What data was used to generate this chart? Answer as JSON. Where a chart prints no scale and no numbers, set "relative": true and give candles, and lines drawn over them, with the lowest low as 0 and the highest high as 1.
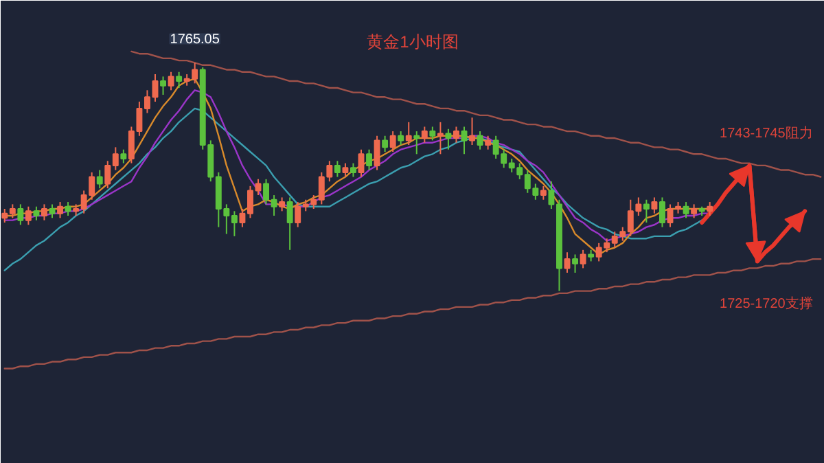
{
  "chart_data": {
    "type": "candlestick",
    "title": "黄金1小时图",
    "relative": true,
    "categories": [
      null,
      null,
      null,
      null,
      null,
      null,
      null,
      null,
      null,
      null,
      null,
      null,
      null,
      null,
      null,
      null,
      null,
      null,
      null,
      null,
      null,
      null,
      null,
      null,
      null,
      null,
      null,
      null,
      null,
      null,
      null,
      null,
      null,
      null,
      null,
      null,
      null,
      null,
      null,
      null,
      null,
      null,
      null,
      null,
      null,
      null,
      null,
      null,
      null,
      null,
      null,
      null,
      null,
      null,
      null,
      null,
      null,
      null,
      null,
      null,
      null,
      null,
      null,
      null,
      null,
      null,
      null,
      null,
      null,
      null,
      null,
      null,
      null,
      null,
      null,
      null,
      null,
      null,
      null,
      null,
      null,
      null,
      null,
      null,
      null,
      null,
      null,
      null,
      null,
      null,
      null,
      null,
      null,
      null,
      null,
      null,
      null,
      null,
      null,
      null,
      null,
      null,
      null,
      null
    ],
    "ohlc": [
      [
        0.32,
        0.36,
        0.3,
        0.34
      ],
      [
        0.34,
        0.38,
        0.32,
        0.36
      ],
      [
        0.36,
        0.38,
        0.29,
        0.31
      ],
      [
        0.31,
        0.37,
        0.29,
        0.35
      ],
      [
        0.35,
        0.37,
        0.31,
        0.33
      ],
      [
        0.33,
        0.38,
        0.31,
        0.36
      ],
      [
        0.36,
        0.38,
        0.32,
        0.34
      ],
      [
        0.34,
        0.39,
        0.32,
        0.37
      ],
      [
        0.37,
        0.39,
        0.33,
        0.35
      ],
      [
        0.35,
        0.38,
        0.33,
        0.36
      ],
      [
        0.36,
        0.44,
        0.34,
        0.42
      ],
      [
        0.42,
        0.52,
        0.4,
        0.5
      ],
      [
        0.5,
        0.53,
        0.45,
        0.47
      ],
      [
        0.47,
        0.57,
        0.45,
        0.55
      ],
      [
        0.55,
        0.63,
        0.53,
        0.6
      ],
      [
        0.6,
        0.62,
        0.56,
        0.58
      ],
      [
        0.58,
        0.72,
        0.56,
        0.7
      ],
      [
        0.7,
        0.83,
        0.68,
        0.8
      ],
      [
        0.8,
        0.88,
        0.78,
        0.85
      ],
      [
        0.85,
        0.95,
        0.83,
        0.92
      ],
      [
        0.92,
        0.94,
        0.86,
        0.9
      ],
      [
        0.9,
        0.96,
        0.88,
        0.94
      ],
      [
        0.94,
        0.96,
        0.89,
        0.92
      ],
      [
        0.92,
        0.95,
        0.9,
        0.93
      ],
      [
        0.93,
        1.0,
        0.91,
        0.97
      ],
      [
        0.97,
        0.98,
        0.62,
        0.64
      ],
      [
        0.64,
        0.66,
        0.48,
        0.5
      ],
      [
        0.5,
        0.52,
        0.28,
        0.36
      ],
      [
        0.36,
        0.38,
        0.25,
        0.33
      ],
      [
        0.33,
        0.35,
        0.24,
        0.3
      ],
      [
        0.3,
        0.36,
        0.28,
        0.34
      ],
      [
        0.34,
        0.46,
        0.32,
        0.44
      ],
      [
        0.44,
        0.49,
        0.42,
        0.47
      ],
      [
        0.47,
        0.49,
        0.38,
        0.4
      ],
      [
        0.4,
        0.42,
        0.33,
        0.37
      ],
      [
        0.37,
        0.41,
        0.35,
        0.39
      ],
      [
        0.39,
        0.41,
        0.18,
        0.3
      ],
      [
        0.3,
        0.39,
        0.28,
        0.37
      ],
      [
        0.37,
        0.4,
        0.35,
        0.38
      ],
      [
        0.38,
        0.42,
        0.36,
        0.4
      ],
      [
        0.4,
        0.52,
        0.38,
        0.5
      ],
      [
        0.5,
        0.57,
        0.48,
        0.55
      ],
      [
        0.55,
        0.57,
        0.5,
        0.52
      ],
      [
        0.52,
        0.56,
        0.5,
        0.54
      ],
      [
        0.54,
        0.56,
        0.5,
        0.52
      ],
      [
        0.52,
        0.62,
        0.5,
        0.6
      ],
      [
        0.6,
        0.62,
        0.53,
        0.55
      ],
      [
        0.55,
        0.68,
        0.53,
        0.66
      ],
      [
        0.66,
        0.68,
        0.61,
        0.63
      ],
      [
        0.63,
        0.7,
        0.61,
        0.68
      ],
      [
        0.68,
        0.7,
        0.64,
        0.66
      ],
      [
        0.66,
        0.74,
        0.64,
        0.68
      ],
      [
        0.68,
        0.7,
        0.6,
        0.67
      ],
      [
        0.67,
        0.72,
        0.65,
        0.7
      ],
      [
        0.7,
        0.72,
        0.66,
        0.68
      ],
      [
        0.68,
        0.74,
        0.6,
        0.69
      ],
      [
        0.69,
        0.71,
        0.62,
        0.67
      ],
      [
        0.67,
        0.72,
        0.65,
        0.7
      ],
      [
        0.7,
        0.72,
        0.6,
        0.66
      ],
      [
        0.66,
        0.76,
        0.64,
        0.68
      ],
      [
        0.68,
        0.7,
        0.62,
        0.64
      ],
      [
        0.64,
        0.68,
        0.62,
        0.66
      ],
      [
        0.66,
        0.68,
        0.58,
        0.6
      ],
      [
        0.6,
        0.62,
        0.54,
        0.56
      ],
      [
        0.56,
        0.58,
        0.52,
        0.54
      ],
      [
        0.54,
        0.56,
        0.49,
        0.51
      ],
      [
        0.51,
        0.53,
        0.43,
        0.45
      ],
      [
        0.45,
        0.47,
        0.4,
        0.42
      ],
      [
        0.42,
        0.46,
        0.4,
        0.44
      ],
      [
        0.44,
        0.48,
        0.36,
        0.38
      ],
      [
        0.38,
        0.4,
        0.0,
        0.1
      ],
      [
        0.1,
        0.17,
        0.08,
        0.14
      ],
      [
        0.14,
        0.16,
        0.08,
        0.12
      ],
      [
        0.12,
        0.18,
        0.1,
        0.16
      ],
      [
        0.16,
        0.18,
        0.13,
        0.15
      ],
      [
        0.15,
        0.21,
        0.13,
        0.19
      ],
      [
        0.19,
        0.23,
        0.17,
        0.21
      ],
      [
        0.21,
        0.26,
        0.19,
        0.24
      ],
      [
        0.24,
        0.28,
        0.22,
        0.26
      ],
      [
        0.26,
        0.4,
        0.24,
        0.35
      ],
      [
        0.35,
        0.41,
        0.33,
        0.38
      ],
      [
        0.38,
        0.4,
        0.3,
        0.36
      ],
      [
        0.36,
        0.41,
        0.34,
        0.39
      ],
      [
        0.39,
        0.41,
        0.28,
        0.3
      ],
      [
        0.3,
        0.38,
        0.28,
        0.36
      ],
      [
        0.36,
        0.39,
        0.34,
        0.37
      ],
      [
        0.37,
        0.39,
        0.32,
        0.34
      ],
      [
        0.34,
        0.38,
        0.32,
        0.36
      ],
      [
        0.36,
        0.37,
        0.33,
        0.35
      ],
      [
        0.35,
        0.39,
        0.33,
        0.37
      ],
      null,
      null,
      null,
      null,
      null,
      null,
      null,
      null,
      null,
      null,
      null,
      null,
      null,
      null
    ],
    "colors": [
      "#ef6a4f",
      "#ef6a4f",
      "#5cc23d",
      "#ef6a4f",
      "#5cc23d",
      "#ef6a4f",
      "#5cc23d",
      "#ef6a4f",
      "#5cc23d",
      "#ef6a4f",
      "#ef6a4f",
      "#ef6a4f",
      "#5cc23d",
      "#ef6a4f",
      "#ef6a4f",
      "#5cc23d",
      "#ef6a4f",
      "#ef6a4f",
      "#ef6a4f",
      "#ef6a4f",
      "#5cc23d",
      "#ef6a4f",
      "#5cc23d",
      "#ef6a4f",
      "#ef6a4f",
      "#5cc23d",
      "#5cc23d",
      "#5cc23d",
      "#5cc23d",
      "#5cc23d",
      "#ef6a4f",
      "#ef6a4f",
      "#ef6a4f",
      "#5cc23d",
      "#5cc23d",
      "#ef6a4f",
      "#5cc23d",
      "#ef6a4f",
      "#ef6a4f",
      "#ef6a4f",
      "#ef6a4f",
      "#ef6a4f",
      "#5cc23d",
      "#ef6a4f",
      "#5cc23d",
      "#ef6a4f",
      "#5cc23d",
      "#ef6a4f",
      "#5cc23d",
      "#ef6a4f",
      "#5cc23d",
      "#ef6a4f",
      "#5cc23d",
      "#ef6a4f",
      "#5cc23d",
      "#ef6a4f",
      "#5cc23d",
      "#ef6a4f",
      "#5cc23d",
      "#ef6a4f",
      "#5cc23d",
      "#ef6a4f",
      "#5cc23d",
      "#5cc23d",
      "#5cc23d",
      "#5cc23d",
      "#5cc23d",
      "#5cc23d",
      "#ef6a4f",
      "#5cc23d",
      "#5cc23d",
      "#ef6a4f",
      "#5cc23d",
      "#ef6a4f",
      "#5cc23d",
      "#ef6a4f",
      "#ef6a4f",
      "#ef6a4f",
      "#ef6a4f",
      "#ef6a4f",
      "#ef6a4f",
      "#5cc23d",
      "#ef6a4f",
      "#5cc23d",
      "#ef6a4f",
      "#ef6a4f",
      "#5cc23d",
      "#ef6a4f",
      "#5cc23d",
      "#ef6a4f",
      null,
      null,
      null,
      null,
      null,
      null,
      null,
      null,
      null,
      null,
      null,
      null,
      null,
      null
    ],
    "series": [
      {
        "type": "line",
        "color": "#3b9fb0",
        "values": [
          0.09,
          0.12,
          0.14,
          0.17,
          0.2,
          0.22,
          0.25,
          0.28,
          0.3,
          0.33,
          0.35,
          0.38,
          0.41,
          0.44,
          0.47,
          0.5,
          0.53,
          0.56,
          0.6,
          0.63,
          0.67,
          0.7,
          0.74,
          0.77,
          0.8,
          0.79,
          0.76,
          0.73,
          0.7,
          0.67,
          0.64,
          0.61,
          0.58,
          0.55,
          0.5,
          0.46,
          0.42,
          0.38,
          0.37,
          0.37,
          0.37,
          0.37,
          0.39,
          0.41,
          0.43,
          0.45,
          0.47,
          0.48,
          0.5,
          0.52,
          0.54,
          0.55,
          0.57,
          0.59,
          0.6,
          0.62,
          0.63,
          0.65,
          0.66,
          0.67,
          0.67,
          0.66,
          0.64,
          0.63,
          0.62,
          0.61,
          0.57,
          0.53,
          0.49,
          0.45,
          0.42,
          0.38,
          0.35,
          0.32,
          0.3,
          0.28,
          0.27,
          0.25,
          0.24,
          0.23,
          0.23,
          0.23,
          0.24,
          0.24,
          0.24,
          0.26,
          0.27,
          0.29,
          0.31,
          null,
          null,
          null,
          null,
          null,
          null,
          null,
          null,
          null,
          null,
          null,
          null,
          null,
          null,
          null
        ]
      },
      {
        "type": "line",
        "color": "#9b35c9",
        "values": [
          0.31,
          0.31,
          0.32,
          0.32,
          0.33,
          0.33,
          0.34,
          0.34,
          0.35,
          0.35,
          0.36,
          0.38,
          0.4,
          0.42,
          0.44,
          0.46,
          0.48,
          0.54,
          0.59,
          0.65,
          0.7,
          0.75,
          0.79,
          0.84,
          0.88,
          0.87,
          0.85,
          0.78,
          0.7,
          0.63,
          0.55,
          0.49,
          0.44,
          0.38,
          0.38,
          0.38,
          0.37,
          0.37,
          0.37,
          0.39,
          0.41,
          0.42,
          0.44,
          0.46,
          0.48,
          0.5,
          0.53,
          0.55,
          0.57,
          0.6,
          0.62,
          0.63,
          0.64,
          0.65,
          0.65,
          0.66,
          0.67,
          0.67,
          0.67,
          0.68,
          0.68,
          0.67,
          0.65,
          0.64,
          0.62,
          0.6,
          0.57,
          0.55,
          0.52,
          0.47,
          0.42,
          0.37,
          0.32,
          0.3,
          0.27,
          0.25,
          0.22,
          0.23,
          0.24,
          0.25,
          0.26,
          0.28,
          0.29,
          0.31,
          0.32,
          0.32,
          0.33,
          0.33,
          0.34,
          0.34,
          null,
          null,
          null,
          null,
          null,
          null,
          null,
          null,
          null,
          null,
          null,
          null,
          null,
          null
        ]
      },
      {
        "type": "line",
        "color": "#d98a2b",
        "values": [
          0.33,
          0.33,
          0.34,
          0.34,
          0.35,
          0.35,
          0.36,
          0.36,
          0.37,
          0.37,
          0.38,
          0.41,
          0.44,
          0.47,
          0.51,
          0.54,
          0.58,
          0.64,
          0.7,
          0.76,
          0.81,
          0.85,
          0.9,
          0.92,
          0.93,
          0.87,
          0.8,
          0.68,
          0.55,
          0.45,
          0.35,
          0.37,
          0.38,
          0.4,
          0.39,
          0.37,
          0.36,
          0.38,
          0.39,
          0.41,
          0.42,
          0.45,
          0.48,
          0.5,
          0.53,
          0.55,
          0.57,
          0.58,
          0.6,
          0.62,
          0.64,
          0.65,
          0.67,
          0.67,
          0.67,
          0.68,
          0.68,
          0.68,
          0.68,
          0.67,
          0.67,
          0.65,
          0.64,
          0.62,
          0.6,
          0.57,
          0.53,
          0.5,
          0.47,
          0.43,
          0.38,
          0.32,
          0.25,
          0.22,
          0.19,
          0.16,
          0.18,
          0.19,
          0.21,
          0.25,
          0.28,
          0.32,
          0.33,
          0.35,
          0.36,
          0.36,
          0.36,
          0.36,
          0.36,
          0.36,
          null,
          null,
          null,
          null,
          null,
          null,
          null,
          null,
          null,
          null,
          null,
          null,
          null,
          null
        ]
      },
      {
        "type": "line",
        "color": "#a0524a",
        "values": [
          null,
          null,
          null,
          null,
          null,
          null,
          null,
          null,
          null,
          null,
          null,
          null,
          null,
          null,
          null,
          null,
          1.05,
          1.04,
          1.04,
          1.03,
          1.02,
          1.02,
          1.01,
          1.01,
          1.0,
          0.99,
          0.99,
          0.98,
          0.97,
          0.97,
          0.96,
          0.96,
          0.95,
          0.94,
          0.94,
          0.93,
          0.92,
          0.92,
          0.91,
          0.91,
          0.9,
          0.89,
          0.89,
          0.88,
          0.87,
          0.87,
          0.86,
          0.85,
          0.85,
          0.84,
          0.84,
          0.83,
          0.82,
          0.82,
          0.81,
          0.8,
          0.8,
          0.79,
          0.79,
          0.78,
          0.77,
          0.77,
          0.76,
          0.75,
          0.75,
          0.74,
          0.73,
          0.73,
          0.72,
          0.72,
          0.71,
          0.7,
          0.7,
          0.69,
          0.68,
          0.68,
          0.67,
          0.67,
          0.66,
          0.65,
          0.65,
          0.64,
          0.63,
          0.63,
          0.62,
          0.62,
          0.61,
          0.6,
          0.6,
          0.59,
          0.58,
          0.58,
          0.57,
          0.56,
          0.56,
          0.55,
          0.55,
          0.54,
          0.53,
          0.53,
          0.52,
          0.51,
          0.51,
          0.5
        ]
      },
      {
        "type": "line",
        "color": "#a0524a",
        "values": [
          -0.34,
          -0.34,
          -0.33,
          -0.33,
          -0.32,
          -0.32,
          -0.31,
          -0.31,
          -0.3,
          -0.3,
          -0.29,
          -0.29,
          -0.28,
          -0.28,
          -0.27,
          -0.27,
          -0.27,
          -0.26,
          -0.26,
          -0.25,
          -0.25,
          -0.24,
          -0.24,
          -0.23,
          -0.23,
          -0.22,
          -0.22,
          -0.21,
          -0.21,
          -0.2,
          -0.2,
          -0.2,
          -0.19,
          -0.19,
          -0.18,
          -0.18,
          -0.17,
          -0.17,
          -0.16,
          -0.16,
          -0.15,
          -0.15,
          -0.14,
          -0.14,
          -0.13,
          -0.13,
          -0.13,
          -0.12,
          -0.12,
          -0.11,
          -0.11,
          -0.1,
          -0.1,
          -0.09,
          -0.09,
          -0.08,
          -0.08,
          -0.07,
          -0.07,
          -0.07,
          -0.06,
          -0.06,
          -0.05,
          -0.05,
          -0.04,
          -0.04,
          -0.03,
          -0.03,
          -0.02,
          -0.02,
          -0.01,
          -0.01,
          0.0,
          0.0,
          0.0,
          0.01,
          0.01,
          0.02,
          0.02,
          0.03,
          0.03,
          0.04,
          0.04,
          0.05,
          0.05,
          0.06,
          0.06,
          0.07,
          0.07,
          0.07,
          0.08,
          0.08,
          0.09,
          0.09,
          0.1,
          0.1,
          0.11,
          0.11,
          0.12,
          0.12,
          0.13,
          0.13,
          0.14,
          0.14
        ]
      },
      {
        "type": "line",
        "color": "#e8372b",
        "values": [
          null,
          null,
          null,
          null,
          null,
          null,
          null,
          null,
          null,
          null,
          null,
          null,
          null,
          null,
          null,
          null,
          null,
          null,
          null,
          null,
          null,
          null,
          null,
          null,
          null,
          null,
          null,
          null,
          null,
          null,
          null,
          null,
          null,
          null,
          null,
          null,
          null,
          null,
          null,
          null,
          null,
          null,
          null,
          null,
          null,
          null,
          null,
          null,
          null,
          null,
          null,
          null,
          null,
          null,
          null,
          null,
          null,
          null,
          null,
          null,
          null,
          null,
          null,
          null,
          null,
          null,
          null,
          null,
          null,
          null,
          null,
          null,
          null,
          null,
          null,
          null,
          null,
          null,
          null,
          null,
          null,
          null,
          null,
          null,
          null,
          null,
          null,
          null,
          0.3,
          0.34,
          0.38,
          0.43,
          0.47,
          0.51,
          0.55,
          0.13,
          0.17,
          0.2,
          0.24,
          0.28,
          0.31,
          0.35,
          null,
          null
        ]
      }
    ],
    "annotations": [
      {
        "text": "1765.05",
        "y": 1.0
      },
      "1743-1745阻力",
      "1725-1720支撑"
    ]
  }
}
